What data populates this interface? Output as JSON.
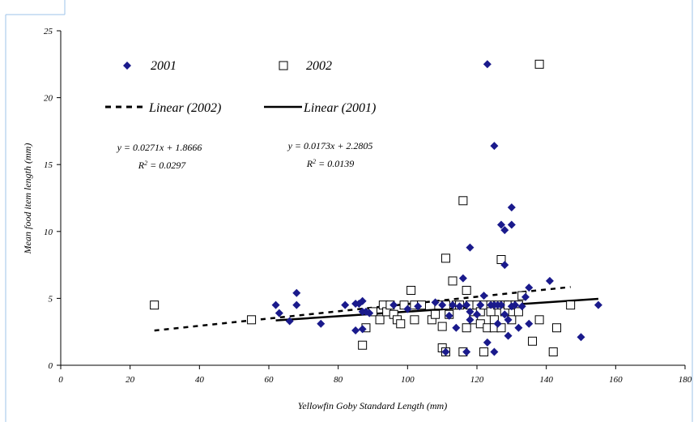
{
  "chart_data": {
    "type": "scatter",
    "title": "",
    "xlabel": "Yellowfin Goby Standard Length (mm)",
    "ylabel": "Mean food item length (mm)",
    "xlim": [
      0,
      180
    ],
    "ylim": [
      0,
      25
    ],
    "xticks": [
      "0",
      "20",
      "40",
      "60",
      "80",
      "100",
      "120",
      "140",
      "160",
      "180"
    ],
    "yticks": [
      "0",
      "5",
      "10",
      "15",
      "20",
      "25"
    ],
    "grid": false,
    "legend_position": "top-left",
    "series": [
      {
        "name": "2001",
        "marker": "diamond",
        "color": "#1a1a8c",
        "points": [
          [
            62,
            4.5
          ],
          [
            63,
            3.9
          ],
          [
            66,
            3.3
          ],
          [
            68,
            5.4
          ],
          [
            68,
            4.5
          ],
          [
            75,
            3.1
          ],
          [
            82,
            4.5
          ],
          [
            85,
            4.6
          ],
          [
            85,
            2.6
          ],
          [
            86,
            4.6
          ],
          [
            87,
            4.8
          ],
          [
            87,
            2.7
          ],
          [
            87,
            4.0
          ],
          [
            88,
            4.0
          ],
          [
            89,
            3.9
          ],
          [
            96,
            4.5
          ],
          [
            100,
            4.2
          ],
          [
            103,
            4.4
          ],
          [
            108,
            4.7
          ],
          [
            110,
            4.5
          ],
          [
            111,
            1.0
          ],
          [
            112,
            3.7
          ],
          [
            113,
            4.5
          ],
          [
            114,
            2.8
          ],
          [
            115,
            4.4
          ],
          [
            116,
            6.5
          ],
          [
            117,
            4.5
          ],
          [
            117,
            1.0
          ],
          [
            118,
            8.8
          ],
          [
            118,
            4.0
          ],
          [
            118,
            3.4
          ],
          [
            120,
            3.8
          ],
          [
            121,
            4.5
          ],
          [
            122,
            5.2
          ],
          [
            123,
            22.5
          ],
          [
            123,
            1.7
          ],
          [
            124,
            4.5
          ],
          [
            125,
            16.4
          ],
          [
            125,
            4.5
          ],
          [
            125,
            1.0
          ],
          [
            126,
            4.5
          ],
          [
            126,
            3.1
          ],
          [
            127,
            10.5
          ],
          [
            127,
            4.5
          ],
          [
            128,
            10.1
          ],
          [
            128,
            7.5
          ],
          [
            128,
            3.8
          ],
          [
            129,
            3.4
          ],
          [
            129,
            2.2
          ],
          [
            130,
            11.8
          ],
          [
            130,
            10.5
          ],
          [
            130,
            4.4
          ],
          [
            131,
            4.5
          ],
          [
            132,
            2.8
          ],
          [
            133,
            4.4
          ],
          [
            134,
            5.1
          ],
          [
            135,
            5.8
          ],
          [
            135,
            3.1
          ],
          [
            141,
            6.3
          ],
          [
            150,
            2.1
          ],
          [
            155,
            4.5
          ]
        ]
      },
      {
        "name": "2002",
        "marker": "square",
        "color": "#000000",
        "points": [
          [
            27,
            4.5
          ],
          [
            55,
            3.4
          ],
          [
            87,
            1.5
          ],
          [
            88,
            2.8
          ],
          [
            90,
            4.0
          ],
          [
            92,
            3.4
          ],
          [
            93,
            4.5
          ],
          [
            94,
            4.0
          ],
          [
            95,
            4.5
          ],
          [
            96,
            3.8
          ],
          [
            97,
            3.4
          ],
          [
            98,
            3.1
          ],
          [
            99,
            4.5
          ],
          [
            101,
            5.6
          ],
          [
            102,
            4.5
          ],
          [
            102,
            3.4
          ],
          [
            104,
            4.5
          ],
          [
            107,
            3.4
          ],
          [
            108,
            3.8
          ],
          [
            109,
            4.5
          ],
          [
            110,
            2.9
          ],
          [
            110,
            1.3
          ],
          [
            111,
            8.0
          ],
          [
            111,
            4.5
          ],
          [
            111,
            1.0
          ],
          [
            112,
            3.8
          ],
          [
            113,
            6.3
          ],
          [
            114,
            4.5
          ],
          [
            115,
            4.5
          ],
          [
            116,
            12.3
          ],
          [
            116,
            1.0
          ],
          [
            117,
            5.6
          ],
          [
            117,
            2.8
          ],
          [
            118,
            4.5
          ],
          [
            119,
            3.4
          ],
          [
            120,
            4.5
          ],
          [
            121,
            4.0
          ],
          [
            121,
            3.1
          ],
          [
            122,
            4.5
          ],
          [
            122,
            1.0
          ],
          [
            123,
            2.8
          ],
          [
            124,
            4.5
          ],
          [
            124,
            4.0
          ],
          [
            125,
            3.4
          ],
          [
            125,
            2.8
          ],
          [
            126,
            4.5
          ],
          [
            127,
            7.9
          ],
          [
            127,
            2.8
          ],
          [
            128,
            4.5
          ],
          [
            128,
            4.0
          ],
          [
            129,
            4.5
          ],
          [
            130,
            3.4
          ],
          [
            131,
            4.5
          ],
          [
            132,
            4.5
          ],
          [
            132,
            4.0
          ],
          [
            133,
            5.2
          ],
          [
            136,
            1.8
          ],
          [
            138,
            22.5
          ],
          [
            138,
            3.4
          ],
          [
            142,
            1.0
          ],
          [
            143,
            2.8
          ],
          [
            147,
            4.5
          ]
        ]
      }
    ],
    "trendlines": [
      {
        "name": "Linear (2002)",
        "style": "dashed",
        "slope": 0.0271,
        "intercept": 1.8666,
        "x_range": [
          27,
          147
        ],
        "equation": "y = 0.0271x + 1.8666",
        "r2_prefix": "R",
        "r2_sup": "2",
        "r2_value": " = 0.0297"
      },
      {
        "name": "Linear (2001)",
        "style": "solid",
        "slope": 0.0173,
        "intercept": 2.2805,
        "x_range": [
          62,
          155
        ],
        "equation": "y = 0.0173x + 2.2805",
        "r2_prefix": "R",
        "r2_sup": "2",
        "r2_value": " = 0.0139"
      }
    ]
  }
}
